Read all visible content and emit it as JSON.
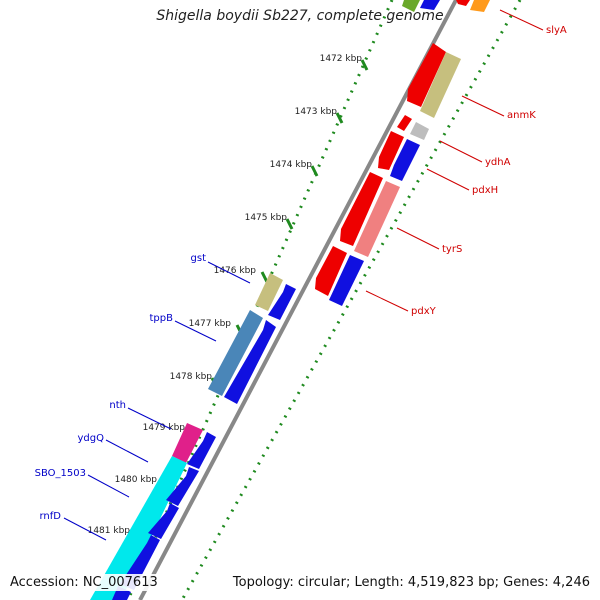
{
  "title": "Shigella boydii Sb227, complete genome",
  "footer": {
    "accession": "Accession: NC_007613",
    "summary": "Topology: circular; Length: 4,519,823 bp; Genes: 4,246"
  },
  "ruler": {
    "ticks": [
      "1472 kbp",
      "1473 kbp",
      "1474 kbp",
      "1475 kbp",
      "1476 kbp",
      "1477 kbp",
      "1478 kbp",
      "1479 kbp",
      "1480 kbp",
      "1481 kbp"
    ]
  },
  "colors": {
    "red": "#ee0000",
    "blue": "#1010e0",
    "olive": "#c6bf7e",
    "gray": "#bdbdbd",
    "pink": "#f08080",
    "steelblue": "#4a86b8",
    "magenta": "#e0208a",
    "cyan": "#00e8ec",
    "orange": "#ff9a1c",
    "green": "#6aa82a",
    "backbone": "#888888",
    "dotted": "#1f8a1f",
    "label_red": "#d00000",
    "label_blue": "#0000c8"
  },
  "right_labels": [
    "slyA",
    "anmK",
    "ydhA",
    "pdxH",
    "tyrS",
    "pdxY"
  ],
  "left_labels": [
    "gst",
    "tppB",
    "nth",
    "ydgQ",
    "SBO_1503",
    "rnfD"
  ]
}
